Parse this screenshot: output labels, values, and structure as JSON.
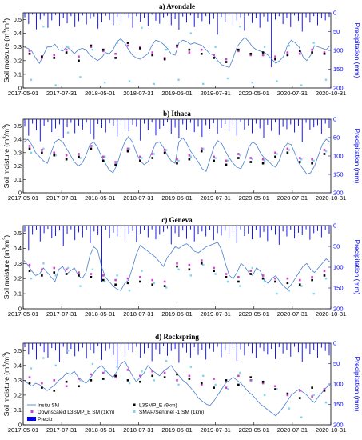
{
  "chart_data": [
    {
      "type": "line",
      "title": "a) Avondale",
      "ylabel": "Soil moisture (m³/m³)",
      "y2label": "Precipitation (mm)",
      "ylim": [
        0,
        0.55
      ],
      "y2lim": [
        200,
        0
      ],
      "y_ticks": [
        "0",
        "0.1",
        "0.2",
        "0.3",
        "0.4",
        "0.5"
      ],
      "y2_ticks": [
        "0",
        "50",
        "100",
        "150",
        "200"
      ],
      "x_ticks": [
        "2017-05-01",
        "2017-07-31",
        "2018-05-01",
        "2018-07-31",
        "2019-05-01",
        "2019-07-31",
        "2020-05-01",
        "2020-07-31",
        "2020-10-31"
      ],
      "insitu_sm": [
        0.3,
        0.29,
        0.27,
        0.22,
        0.18,
        0.24,
        0.3,
        0.3,
        0.32,
        0.28,
        0.27,
        0.3,
        0.28,
        0.25,
        0.28,
        0.29,
        0.28,
        0.24,
        0.22,
        0.2,
        0.22,
        0.26,
        0.25,
        0.28,
        0.34,
        0.36,
        0.33,
        0.28,
        0.24,
        0.22,
        0.21,
        0.23,
        0.25,
        0.31,
        0.35,
        0.34,
        0.32,
        0.29,
        0.25,
        0.24,
        0.33,
        0.35,
        0.34,
        0.32,
        0.33,
        0.32,
        0.31,
        0.28,
        0.25,
        0.24,
        0.2,
        0.17,
        0.16,
        0.15,
        0.22,
        0.3,
        0.34,
        0.37,
        0.34,
        0.3,
        0.28,
        0.27,
        0.26,
        0.24,
        0.21,
        0.18,
        0.2,
        0.23,
        0.31,
        0.35,
        0.33,
        0.3,
        0.23,
        0.2,
        0.24,
        0.31,
        0.3,
        0.29,
        0.28,
        0.31
      ],
      "l3smp_e_9km": [
        0.25,
        0.23,
        0.22,
        0.26,
        0.2,
        0.31,
        0.28,
        0.22,
        0.33,
        0.29,
        0.24,
        0.21,
        0.31,
        0.28,
        0.25,
        0.22,
        0.19,
        0.28,
        0.25,
        0.26,
        0.21,
        0.24,
        0.27,
        0.26,
        0.25
      ],
      "downscaled_l3smp_e_1km": [
        0.27,
        0.22,
        0.24,
        0.28,
        0.23,
        0.3,
        0.27,
        0.25,
        0.31,
        0.3,
        0.26,
        0.22,
        0.3,
        0.26,
        0.28,
        0.24,
        0.21,
        0.27,
        0.24,
        0.24,
        0.23,
        0.26,
        0.25,
        0.28,
        0.26
      ],
      "smap_sentinel1_1km": [
        0.06,
        0.45,
        0.02,
        0.3,
        0.08,
        0.28,
        0.04,
        0.33,
        0.05,
        0.44,
        0.03,
        0.28,
        0.06,
        0.4,
        0.03,
        0.3,
        0.07,
        0.45,
        0.04,
        0.3,
        0.05,
        0.31,
        0.02,
        0.33,
        0.06
      ],
      "precip": [
        12,
        30,
        5,
        44,
        18,
        8,
        40,
        20,
        6,
        35,
        14,
        28,
        9,
        38,
        22,
        7,
        31,
        16,
        10,
        42,
        25,
        8,
        19,
        33,
        11,
        27,
        6,
        15,
        40,
        9,
        24,
        13,
        36,
        5,
        21,
        29,
        12,
        8,
        33,
        17,
        45,
        10,
        26,
        7,
        38,
        14,
        22,
        9,
        30,
        16,
        58,
        11,
        25,
        6,
        34,
        20,
        12,
        48,
        8,
        27,
        15,
        40,
        10,
        23,
        145,
        18,
        9,
        30,
        14,
        38,
        7,
        21,
        50,
        12,
        26,
        9,
        33,
        15,
        20,
        11
      ]
    },
    {
      "type": "line",
      "title": "b) Ithaca",
      "ylabel": "Soil moisture (m³/m³)",
      "y2label": "Precipitation (mm)",
      "ylim": [
        0,
        0.55
      ],
      "y2lim": [
        200,
        0
      ],
      "y_ticks": [
        "0",
        "0.1",
        "0.2",
        "0.3",
        "0.4",
        "0.5"
      ],
      "y2_ticks": [
        "0",
        "50",
        "100",
        "150",
        "200"
      ],
      "x_ticks": [
        "2017-05-01",
        "2017-07-31",
        "2018-05-01",
        "2018-07-31",
        "2019-05-01",
        "2019-07-31",
        "2020-05-01",
        "2020-07-31",
        "2020-10-31"
      ],
      "insitu_sm": [
        0.38,
        0.4,
        0.36,
        0.3,
        0.27,
        0.24,
        0.22,
        0.3,
        0.38,
        0.4,
        0.38,
        0.33,
        0.28,
        0.23,
        0.2,
        0.22,
        0.28,
        0.36,
        0.38,
        0.34,
        0.27,
        0.22,
        0.17,
        0.15,
        0.21,
        0.3,
        0.38,
        0.42,
        0.38,
        0.3,
        0.24,
        0.21,
        0.23,
        0.3,
        0.37,
        0.38,
        0.34,
        0.28,
        0.24,
        0.22,
        0.38,
        0.41,
        0.37,
        0.31,
        0.27,
        0.23,
        0.18,
        0.16,
        0.25,
        0.34,
        0.39,
        0.37,
        0.31,
        0.26,
        0.22,
        0.19,
        0.18,
        0.24,
        0.34,
        0.38,
        0.36,
        0.3,
        0.26,
        0.24,
        0.21,
        0.19,
        0.25,
        0.33,
        0.37,
        0.36,
        0.29,
        0.22,
        0.18,
        0.14,
        0.15,
        0.2,
        0.28,
        0.36,
        0.4,
        0.38
      ],
      "l3smp_e_9km": [
        0.33,
        0.3,
        0.28,
        0.25,
        0.27,
        0.33,
        0.24,
        0.21,
        0.31,
        0.24,
        0.26,
        0.3,
        0.22,
        0.25,
        0.31,
        0.24,
        0.21,
        0.26,
        0.23,
        0.22,
        0.27,
        0.3,
        0.23,
        0.22,
        0.29
      ],
      "downscaled_l3smp_e_1km": [
        0.35,
        0.32,
        0.3,
        0.28,
        0.29,
        0.35,
        0.27,
        0.23,
        0.33,
        0.27,
        0.29,
        0.32,
        0.25,
        0.28,
        0.33,
        0.27,
        0.24,
        0.29,
        0.26,
        0.25,
        0.3,
        0.33,
        0.26,
        0.25,
        0.32
      ],
      "smap_sentinel1_1km": [
        0.3,
        0.33,
        0.28,
        0.45,
        0.26,
        0.35,
        0.27,
        0.22,
        0.33,
        0.26,
        0.29,
        0.32,
        0.24,
        0.27,
        0.33,
        0.26,
        0.24,
        0.28,
        0.25,
        0.24,
        0.29,
        0.32,
        0.25,
        0.24,
        0.31
      ],
      "precip": [
        20,
        45,
        12,
        30,
        60,
        18,
        8,
        35,
        25,
        14,
        50,
        22,
        10,
        38,
        17,
        28,
        9,
        41,
        55,
        13,
        24,
        36,
        11,
        19,
        47,
        8,
        27,
        33,
        15,
        21,
        58,
        12,
        30,
        9,
        44,
        26,
        18,
        7,
        39,
        23,
        52,
        14,
        29,
        10,
        35,
        20,
        48,
        16,
        26,
        11,
        40,
        24,
        13,
        33,
        19,
        45,
        8,
        28,
        17,
        38,
        12,
        25,
        50,
        15,
        32,
        9,
        43,
        21,
        27,
        14,
        36,
        18,
        62,
        10,
        29,
        22,
        16,
        39,
        12,
        24
      ]
    },
    {
      "type": "line",
      "title": "c) Geneva",
      "ylabel": "Soil moisture (m³/m³)",
      "y2label": "Precipitation (mm)",
      "ylim": [
        0,
        0.55
      ],
      "y2lim": [
        200,
        0
      ],
      "y_ticks": [
        "0",
        "0.1",
        "0.2",
        "0.3",
        "0.4",
        "0.5"
      ],
      "y2_ticks": [
        "0",
        "50",
        "100",
        "150",
        "200"
      ],
      "x_ticks": [
        "2017-05-01",
        "2017-07-31",
        "2018-05-01",
        "2018-07-31",
        "2019-05-01",
        "2019-07-31",
        "2020-05-01",
        "2020-07-31",
        "2020-10-31"
      ],
      "insitu_sm": [
        0.32,
        0.29,
        0.25,
        0.22,
        0.23,
        0.27,
        0.24,
        0.21,
        0.18,
        0.26,
        0.28,
        0.23,
        0.25,
        0.27,
        0.22,
        0.2,
        0.24,
        0.35,
        0.41,
        0.39,
        0.28,
        0.21,
        0.18,
        0.15,
        0.13,
        0.12,
        0.17,
        0.19,
        0.27,
        0.36,
        0.42,
        0.4,
        0.38,
        0.36,
        0.34,
        0.31,
        0.28,
        0.34,
        0.37,
        0.41,
        0.4,
        0.42,
        0.43,
        0.41,
        0.38,
        0.37,
        0.39,
        0.41,
        0.42,
        0.43,
        0.44,
        0.39,
        0.3,
        0.22,
        0.2,
        0.24,
        0.3,
        0.28,
        0.24,
        0.22,
        0.27,
        0.25,
        0.19,
        0.17,
        0.2,
        0.22,
        0.18,
        0.15,
        0.13,
        0.16,
        0.2,
        0.24,
        0.28,
        0.3,
        0.26,
        0.24,
        0.27,
        0.3,
        0.33,
        0.31
      ],
      "l3smp_e_9km": [
        0.25,
        0.22,
        0.24,
        0.23,
        0.22,
        0.21,
        0.19,
        0.16,
        0.17,
        0.18,
        0.16,
        0.15,
        0.28,
        0.26,
        0.3,
        0.25,
        0.21,
        0.18,
        0.23,
        0.2,
        0.18,
        0.17,
        0.16,
        0.19,
        0.22
      ],
      "downscaled_l3smp_e_1km": [
        0.29,
        0.26,
        0.27,
        0.26,
        0.24,
        0.23,
        0.22,
        0.19,
        0.2,
        0.21,
        0.19,
        0.18,
        0.3,
        0.29,
        0.32,
        0.27,
        0.23,
        0.21,
        0.25,
        0.22,
        0.2,
        0.2,
        0.19,
        0.21,
        0.25
      ],
      "smap_sentinel1_1km": [
        0.2,
        0.3,
        0.22,
        0.27,
        0.15,
        0.26,
        0.18,
        0.22,
        0.12,
        0.25,
        0.17,
        0.14,
        0.26,
        0.22,
        0.29,
        0.23,
        0.18,
        0.15,
        0.27,
        0.18,
        0.1,
        0.12,
        0.15,
        0.1,
        0.2
      ],
      "precip": [
        15,
        60,
        22,
        10,
        38,
        18,
        8,
        30,
        25,
        12,
        48,
        20,
        9,
        35,
        16,
        28,
        11,
        42,
        14,
        23,
        135,
        10,
        30,
        17,
        26,
        8,
        36,
        21,
        13,
        40,
        19,
        11,
        28,
        9,
        33,
        22,
        15,
        7,
        45,
        18,
        27,
        12,
        32,
        9,
        38,
        21,
        14,
        26,
        10,
        35,
        18,
        24,
        12,
        30,
        16,
        42,
        9,
        25,
        19,
        33,
        11,
        28,
        15,
        37,
        12,
        22,
        46,
        14,
        26,
        10,
        31,
        17,
        23,
        9,
        34,
        18,
        13,
        28,
        11,
        20
      ]
    },
    {
      "type": "line",
      "title": "d) Rockspring",
      "ylabel": "Soil moisture (m³/m³)",
      "y2label": "Precipitation (mm)",
      "ylim": [
        0,
        0.55
      ],
      "y2lim": [
        200,
        0
      ],
      "y_ticks": [
        "0",
        "0.1",
        "0.2",
        "0.3",
        "0.4",
        "0.5"
      ],
      "y2_ticks": [
        "0",
        "50",
        "100",
        "150",
        "200"
      ],
      "x_ticks": [
        "2017-05-01",
        "2017-07-31",
        "2018-05-01",
        "2018-07-31",
        "2019-05-01",
        "2019-07-31",
        "2020-05-01",
        "2020-07-31",
        "2020-10-31"
      ],
      "insitu_sm": [
        0.3,
        0.28,
        0.26,
        0.28,
        0.27,
        0.25,
        0.23,
        0.25,
        0.27,
        0.3,
        0.32,
        0.35,
        0.34,
        0.36,
        0.32,
        0.3,
        0.28,
        0.31,
        0.35,
        0.38,
        0.4,
        0.37,
        0.34,
        0.32,
        0.36,
        0.41,
        0.43,
        0.38,
        0.33,
        0.29,
        0.32,
        0.35,
        0.4,
        0.37,
        0.35,
        0.33,
        0.36,
        0.38,
        0.4,
        0.36,
        0.33,
        0.3,
        0.28,
        0.25,
        0.22,
        0.18,
        0.16,
        0.14,
        0.13,
        0.16,
        0.2,
        0.24,
        0.28,
        0.3,
        0.32,
        0.3,
        0.28,
        0.25,
        0.22,
        0.2,
        0.17,
        0.14,
        0.12,
        0.1,
        0.08,
        0.06,
        0.09,
        0.12,
        0.16,
        0.2,
        0.22,
        0.24,
        0.22,
        0.2,
        0.17,
        0.15,
        0.19,
        0.22,
        0.25,
        0.27
      ],
      "l3smp_e_9km": [
        0.28,
        0.25,
        0.23,
        0.29,
        0.26,
        0.3,
        0.31,
        0.33,
        0.3,
        0.29,
        0.33,
        0.32,
        0.34,
        0.31,
        0.28,
        0.25,
        0.3,
        0.27,
        0.32,
        0.29,
        0.24,
        0.21,
        0.18,
        0.25,
        0.23
      ],
      "downscaled_l3smp_e_1km": [
        0.32,
        0.28,
        0.3,
        0.26,
        0.31,
        0.34,
        0.35,
        0.32,
        0.37,
        0.33,
        0.36,
        0.35,
        0.3,
        0.33,
        0.27,
        0.31,
        0.25,
        0.33,
        0.3,
        0.28,
        0.26,
        0.2,
        0.23,
        0.19,
        0.24
      ],
      "smap_sentinel1_1km": [
        0.38,
        0.45,
        0.4,
        0.5,
        0.3,
        0.41,
        0.36,
        0.39,
        0.28,
        0.36,
        0.3,
        0.43,
        0.27,
        0.39,
        0.33,
        0.27,
        0.24,
        0.35,
        0.3,
        0.2,
        0.24,
        0.11,
        0.05,
        0.2,
        0.15
      ],
      "precip": [
        10,
        28,
        15,
        40,
        8,
        22,
        35,
        12,
        18,
        45,
        9,
        26,
        14,
        32,
        20,
        11,
        38,
        16,
        24,
        7,
        41,
        19,
        13,
        29,
        55,
        10,
        33,
        17,
        22,
        9,
        36,
        25,
        12,
        44,
        15,
        27,
        8,
        31,
        19,
        14,
        48,
        11,
        23,
        35,
        10,
        29,
        16,
        40,
        13,
        21,
        9,
        34,
        18,
        26,
        12,
        43,
        15,
        30,
        8,
        24,
        37,
        11,
        20,
        28,
        14,
        39,
        10,
        25,
        17,
        33,
        9,
        22,
        46,
        13,
        27,
        16,
        35,
        11,
        19,
        30
      ]
    }
  ],
  "legend": {
    "insitu": "Insitu SM",
    "downscaled": "Downscaled L3SMP_E SM (1km)",
    "precip": "Precip",
    "l3smp": "L3SMP_E (9km)",
    "sentinel": "SMAP/Sentinel -1 SM (1km)"
  },
  "colors": {
    "insitu": "#4a7fd0",
    "l3smp": "#000000",
    "downscaled": "#cc44cc",
    "sentinel": "#7fd4f0",
    "precip": "#0000ee",
    "right_axis": "#0000ff"
  }
}
